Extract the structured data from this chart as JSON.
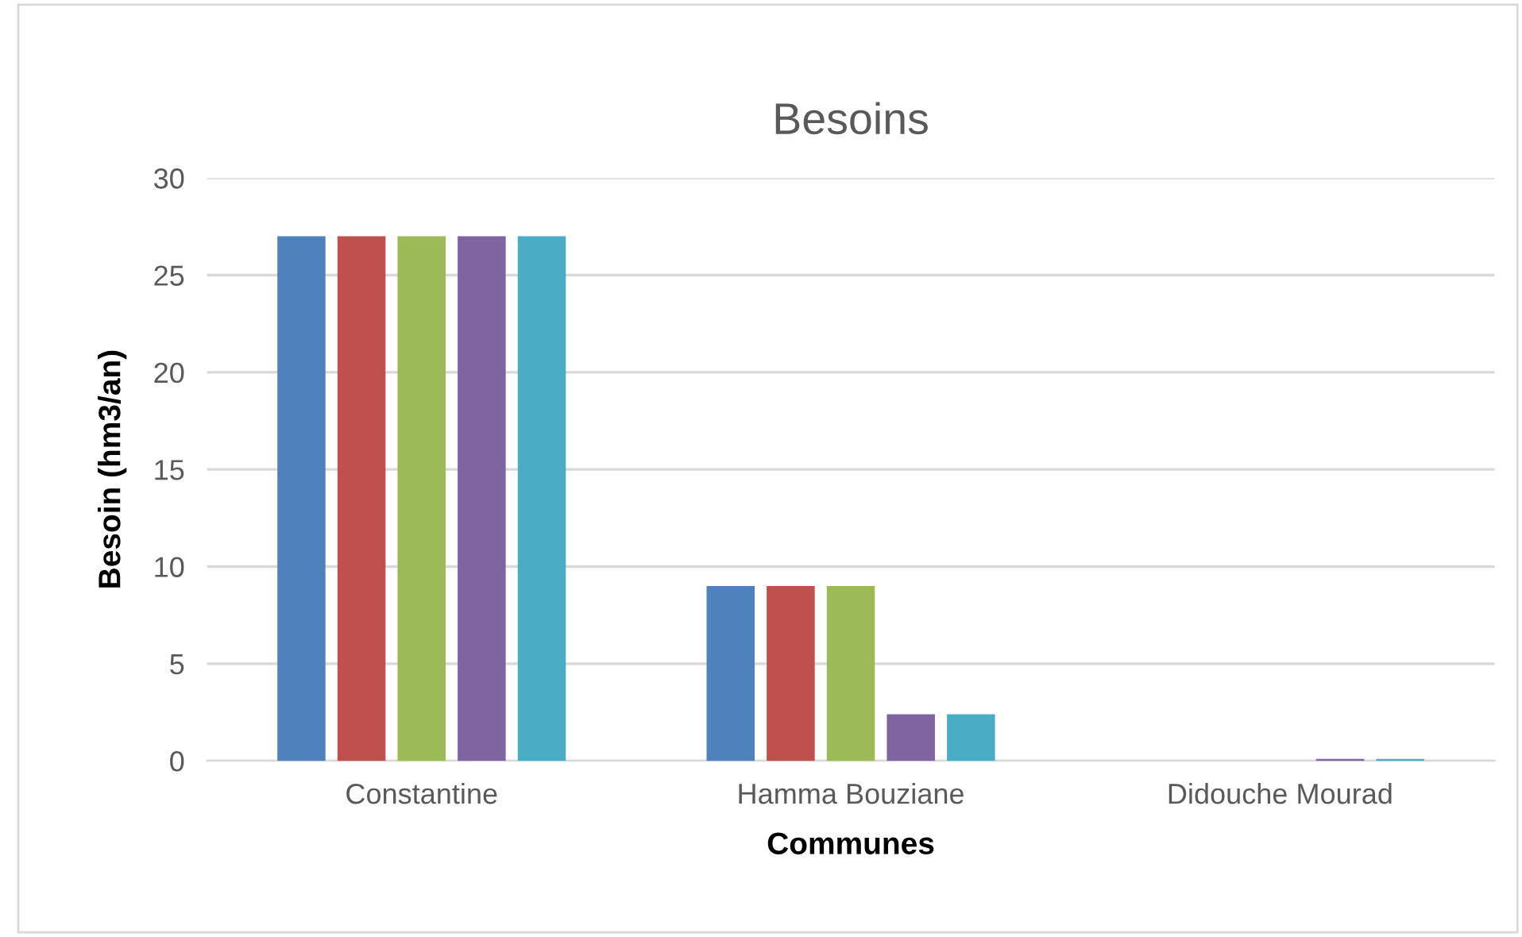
{
  "chart_data": {
    "type": "bar",
    "title": "Besoins",
    "xlabel": "Communes",
    "ylabel": "Besoin (hm3/an)",
    "categories": [
      "Constantine",
      "Hamma Bouziane",
      "Didouche Mourad"
    ],
    "series": [
      {
        "color": "#4f81bd",
        "values": [
          27,
          9,
          0
        ]
      },
      {
        "color": "#c0504d",
        "values": [
          27,
          9,
          0
        ]
      },
      {
        "color": "#9bbb59",
        "values": [
          27,
          9,
          0
        ]
      },
      {
        "color": "#8064a2",
        "values": [
          27,
          2.4,
          0.1
        ]
      },
      {
        "color": "#4bacc6",
        "values": [
          27,
          2.4,
          0.1
        ]
      }
    ],
    "ylim": [
      0,
      30
    ],
    "yticks": [
      0,
      5,
      10,
      15,
      20,
      25,
      30
    ],
    "grid": "y",
    "legend": false
  }
}
